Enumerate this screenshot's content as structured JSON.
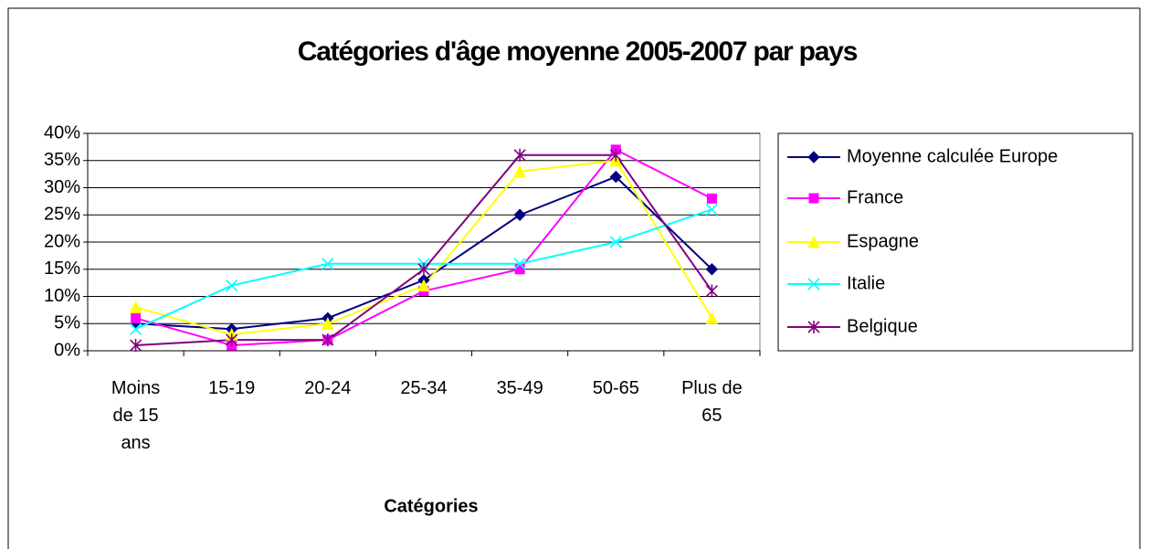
{
  "chart_data": {
    "type": "line",
    "title": "Catégories d'âge moyenne 2005-2007 par pays",
    "x_label": "Catégories",
    "categories": [
      "Moins de 15 ans",
      "15-19",
      "20-24",
      "25-34",
      "35-49",
      "50-65",
      "Plus de 65"
    ],
    "series": [
      {
        "name": "Moyenne calculée Europe",
        "color": "#000080",
        "marker": "diamond",
        "values": [
          5,
          4,
          6,
          13,
          25,
          32,
          15
        ]
      },
      {
        "name": "France",
        "color": "#ff00ff",
        "marker": "square",
        "values": [
          6,
          1,
          2,
          11,
          15,
          37,
          28
        ]
      },
      {
        "name": "Espagne",
        "color": "#ffff00",
        "marker": "triangle",
        "values": [
          8,
          3,
          5,
          12,
          33,
          35,
          6
        ]
      },
      {
        "name": "Italie",
        "color": "#00ffff",
        "marker": "x",
        "values": [
          4,
          12,
          16,
          16,
          16,
          20,
          26
        ]
      },
      {
        "name": "Belgique",
        "color": "#800080",
        "marker": "star",
        "values": [
          1,
          2,
          2,
          15,
          36,
          36,
          11
        ]
      }
    ],
    "ylim": [
      0,
      40
    ],
    "yticks": [
      {
        "value": 0,
        "label": "0%"
      },
      {
        "value": 5,
        "label": "5%"
      },
      {
        "value": 10,
        "label": "10%"
      },
      {
        "value": 15,
        "label": "15%"
      },
      {
        "value": 20,
        "label": "20%"
      },
      {
        "value": 25,
        "label": "25%"
      },
      {
        "value": 30,
        "label": "30%"
      },
      {
        "value": 35,
        "label": "35%"
      },
      {
        "value": 40,
        "label": "40%"
      }
    ],
    "grid": true,
    "legend": "right"
  }
}
